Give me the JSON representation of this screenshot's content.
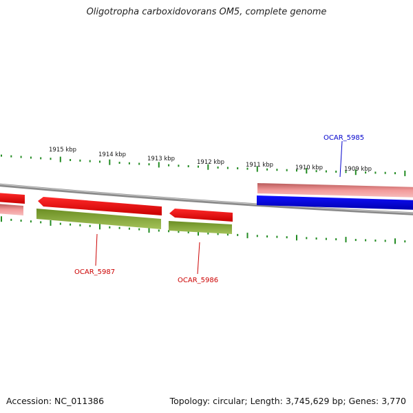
{
  "title": "Oligotropha carboxidovorans OM5, complete genome",
  "footer": {
    "accession": "Accession: NC_011386",
    "topology": "Topology: circular; Length: 3,745,629 bp; Genes: 3,770"
  },
  "ticks": [
    "1915 kbp",
    "1914 kbp",
    "1913 kbp",
    "1912 kbp",
    "1911 kbp",
    "1910 kbp",
    "1909 kbp"
  ],
  "genes": [
    {
      "label": "OCAR_5985",
      "strand": "forward",
      "color": "#0000cc"
    },
    {
      "label": "OCAR_5986",
      "strand": "reverse",
      "color": "#cc0000"
    },
    {
      "label": "OCAR_5987",
      "strand": "reverse",
      "color": "#cc0000"
    }
  ],
  "colors": {
    "forward_cds": "#0000ee",
    "reverse_cds": "#ee0000",
    "gene_band": "#e88080",
    "secondary_band": "#6b8e23",
    "backbone": "#888888",
    "ticks": "#228b22"
  }
}
